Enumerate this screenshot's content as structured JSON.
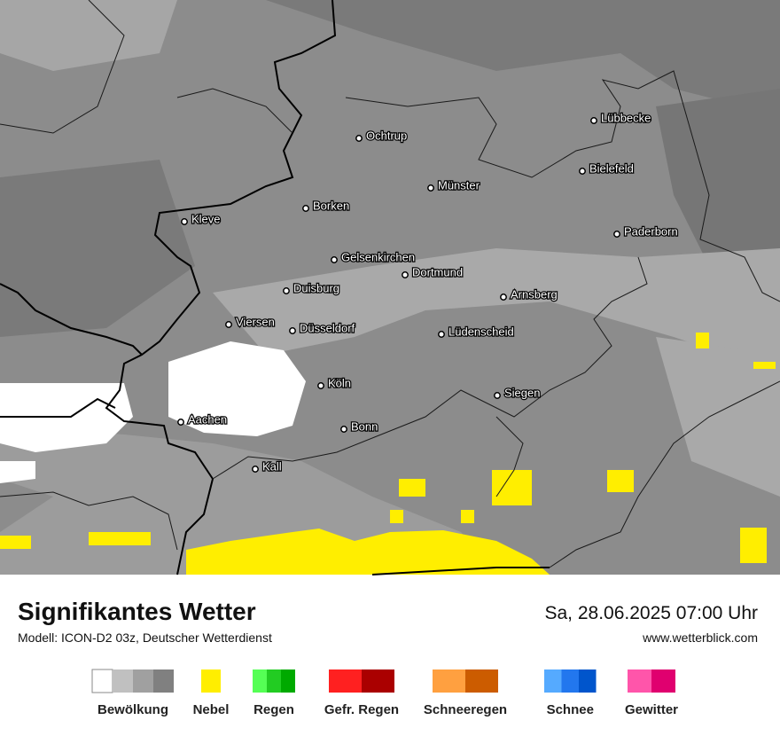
{
  "title": "Signifikantes Wetter",
  "subtitle": "Modell: ICON-D2 03z, Deutscher Wetterdienst",
  "datetime": "Sa, 28.06.2025 07:00 Uhr",
  "website": "www.wetterblick.com",
  "cities": [
    "Ochtrup",
    "Lübbecke",
    "Bielefeld",
    "Münster",
    "Borken",
    "Kleve",
    "Paderborn",
    "Gelsenkirchen",
    "Dortmund",
    "Duisburg",
    "Arnsberg",
    "Viersen",
    "Düsseldorf",
    "Lüdenscheid",
    "Köln",
    "Siegen",
    "Aachen",
    "Bonn",
    "Kall"
  ],
  "legend": [
    {
      "label": "Bewölkung",
      "colors": [
        "#ffffff",
        "#c0c0c0",
        "#a0a0a0",
        "#808080"
      ]
    },
    {
      "label": "Nebel",
      "colors": [
        "#ffee00"
      ]
    },
    {
      "label": "Regen",
      "colors": [
        "#55ff55",
        "#22cc22",
        "#00aa00"
      ]
    },
    {
      "label": "Gefr. Regen",
      "colors": [
        "#ff2020",
        "#aa0000"
      ]
    },
    {
      "label": "Schneeregen",
      "colors": [
        "#ffa040",
        "#cc5c00"
      ]
    },
    {
      "label": "Schnee",
      "colors": [
        "#55aaff",
        "#2277ee",
        "#0055cc"
      ]
    },
    {
      "label": "Gewitter",
      "colors": [
        "#ff55aa",
        "#e0006f"
      ]
    }
  ]
}
